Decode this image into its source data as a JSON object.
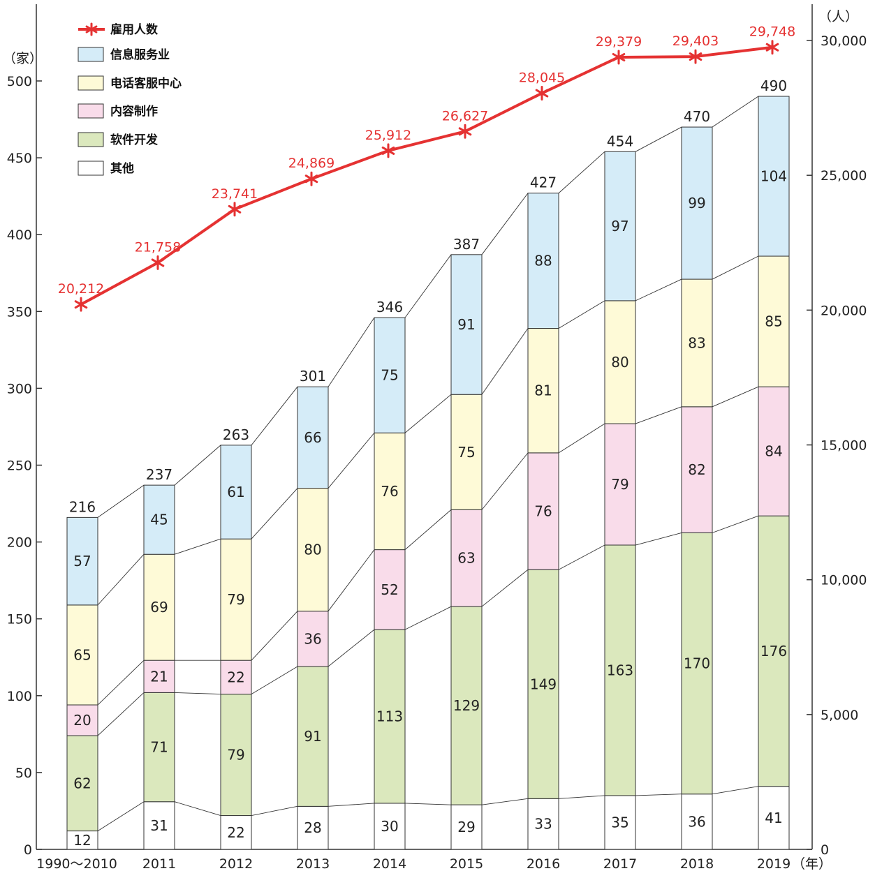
{
  "chart_data": {
    "type": "bar",
    "stacked": true,
    "categories": [
      "1990～2010",
      "2011",
      "2012",
      "2013",
      "2014",
      "2015",
      "2016",
      "2017",
      "2018",
      "2019"
    ],
    "series": [
      {
        "name": "其他",
        "color": "#ffffff",
        "values": [
          12,
          31,
          22,
          28,
          30,
          29,
          33,
          35,
          36,
          41
        ]
      },
      {
        "name": "软件开发",
        "color": "#dbe8bd",
        "values": [
          62,
          71,
          79,
          91,
          113,
          129,
          149,
          163,
          170,
          176
        ]
      },
      {
        "name": "内容制作",
        "color": "#f9dcea",
        "values": [
          20,
          21,
          22,
          36,
          52,
          63,
          76,
          79,
          82,
          84
        ]
      },
      {
        "name": "电话客服中心",
        "color": "#fefad7",
        "values": [
          65,
          69,
          79,
          80,
          76,
          75,
          81,
          80,
          83,
          85
        ]
      },
      {
        "name": "信息服务业",
        "color": "#d5ecf8",
        "values": [
          57,
          45,
          61,
          66,
          75,
          91,
          88,
          97,
          99,
          104
        ]
      }
    ],
    "totals": [
      216,
      237,
      263,
      301,
      346,
      387,
      427,
      454,
      470,
      490
    ],
    "employment": {
      "name": "雇用人数",
      "color": "#e53232",
      "values": [
        20212,
        21758,
        23741,
        24869,
        25912,
        26627,
        28045,
        29379,
        29403,
        29748
      ],
      "labels": [
        "20,212",
        "21,758",
        "23,741",
        "24,869",
        "25,912",
        "26,627",
        "28,045",
        "29,379",
        "29,403",
        "29,748"
      ]
    },
    "legend_order": [
      "雇用人数",
      "信息服务业",
      "电话客服中心",
      "内容制作",
      "软件开发",
      "其他"
    ],
    "legend_position": "top-left",
    "left_axis": {
      "unit": "（家）",
      "range": [
        0,
        500
      ],
      "ticks": [
        0,
        50,
        100,
        150,
        200,
        250,
        300,
        350,
        400,
        450,
        500
      ]
    },
    "right_axis": {
      "unit": "（人）",
      "range": [
        0,
        30000
      ],
      "ticks": [
        0,
        5000,
        10000,
        15000,
        20000,
        25000,
        30000
      ],
      "tick_labels": [
        "0",
        "5,000",
        "10,000",
        "15,000",
        "20,000",
        "25,000",
        "30,000"
      ]
    },
    "x_unit": "（年）",
    "grid": false
  }
}
